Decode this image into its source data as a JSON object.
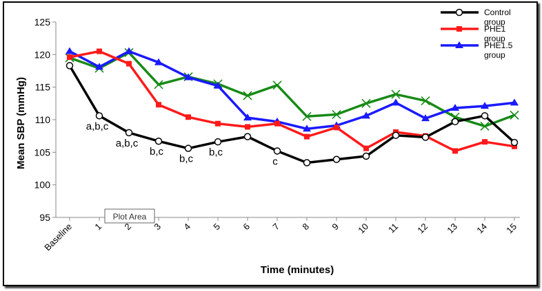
{
  "chart_data": {
    "type": "line",
    "title": "",
    "xlabel": "Time (minutes)",
    "ylabel": "Mean SBP (mmHg)",
    "ylim": [
      95,
      125
    ],
    "yticks": [
      "95",
      "100",
      "105",
      "110",
      "115",
      "120",
      "125"
    ],
    "categories": [
      "Baseline",
      "1",
      "2",
      "3",
      "4",
      "5",
      "6",
      "7",
      "8",
      "9",
      "10",
      "11",
      "12",
      "13",
      "14",
      "15"
    ],
    "series": [
      {
        "name": "Control group",
        "color": "#000000",
        "marker": "circle",
        "values": [
          118.3,
          110.6,
          108.0,
          106.7,
          105.6,
          106.6,
          107.4,
          105.2,
          103.4,
          103.9,
          104.4,
          107.6,
          107.3,
          109.7,
          110.6,
          106.5
        ]
      },
      {
        "name": "PHE1 group",
        "color": "#ff1a1a",
        "marker": "square",
        "values": [
          119.6,
          120.5,
          118.6,
          112.3,
          110.4,
          109.4,
          108.9,
          109.4,
          107.4,
          108.8,
          105.6,
          108.1,
          107.5,
          105.2,
          106.6,
          105.9
        ]
      },
      {
        "name": "PHE1.5 group",
        "color": "#1a1aff",
        "marker": "triangle",
        "values": [
          120.5,
          118.1,
          120.5,
          118.8,
          116.5,
          115.2,
          110.3,
          109.7,
          108.6,
          109.1,
          110.6,
          112.6,
          110.2,
          111.8,
          112.1,
          112.6
        ]
      },
      {
        "name": "",
        "color": "#178a17",
        "marker": "x",
        "values": [
          119.5,
          117.9,
          120.3,
          115.4,
          116.6,
          115.5,
          113.7,
          115.3,
          110.5,
          110.8,
          112.5,
          113.9,
          112.9,
          110.4,
          109.0,
          110.7
        ]
      }
    ],
    "annotations": [
      {
        "text": "a,b,c",
        "x": "1"
      },
      {
        "text": "a,b,c",
        "x": "2"
      },
      {
        "text": "b,c",
        "x": "3"
      },
      {
        "text": "b,c",
        "x": "4"
      },
      {
        "text": "b,c",
        "x": "5"
      },
      {
        "text": "c",
        "x": "7"
      }
    ],
    "tooltip": "Plot Area",
    "legend_position": "top-right"
  }
}
